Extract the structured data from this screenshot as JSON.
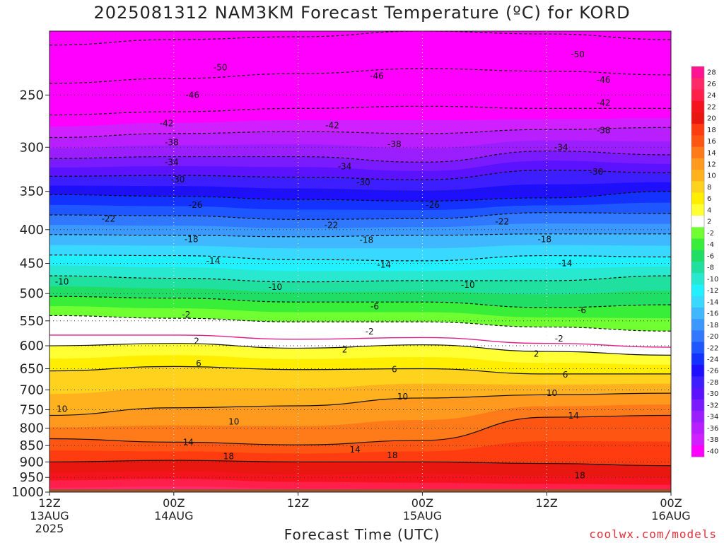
{
  "title": "2025081312 NAM3KM Forecast Temperature (ºC) for KORD",
  "x_axis_title": "Forecast Time (UTC)",
  "credit": "coolwx.com/models",
  "chart_data": {
    "type": "contour-time-height",
    "xlabel": "Forecast Time (UTC)",
    "ylabel": "",
    "y_scale": "log-pressure",
    "ylim": [
      1000,
      200
    ],
    "y_ticks": [
      250,
      300,
      350,
      400,
      450,
      500,
      550,
      600,
      650,
      700,
      750,
      800,
      850,
      900,
      950,
      1000
    ],
    "x_ticks": [
      {
        "hour": 0,
        "lines": [
          "12Z",
          "13AUG",
          "2025"
        ]
      },
      {
        "hour": 12,
        "lines": [
          "00Z",
          "14AUG"
        ]
      },
      {
        "hour": 24,
        "lines": [
          "12Z"
        ]
      },
      {
        "hour": 36,
        "lines": [
          "00Z",
          "15AUG"
        ]
      },
      {
        "hour": 48,
        "lines": [
          "12Z"
        ]
      },
      {
        "hour": 60,
        "lines": [
          "00Z",
          "16AUG"
        ]
      }
    ],
    "xlim": [
      0,
      60
    ],
    "colorbar_ticks": [
      28,
      26,
      24,
      22,
      20,
      18,
      16,
      14,
      12,
      10,
      8,
      6,
      4,
      2,
      -2,
      -4,
      -6,
      -8,
      -10,
      -12,
      -14,
      -16,
      -18,
      -20,
      -22,
      -24,
      -26,
      -28,
      -30,
      -32,
      -34,
      -36,
      -38,
      -40
    ],
    "colorbar_colors": [
      "#ff1493",
      "#ff2a6a",
      "#ff1f4a",
      "#f5141e",
      "#e8170f",
      "#ff3b10",
      "#ff5512",
      "#ff7a18",
      "#ff9a1e",
      "#ffb21e",
      "#ffd21e",
      "#ffee00",
      "#ffff33",
      "#ffffff",
      "#70ff30",
      "#38ee38",
      "#20dd66",
      "#20e0a0",
      "#28e8d0",
      "#20f0ff",
      "#38d8ff",
      "#40b8ff",
      "#3a98ff",
      "#2f78ff",
      "#1e56ff",
      "#1432ff",
      "#1e10ff",
      "#3c1eff",
      "#5a12ff",
      "#7a1aff",
      "#9a1eff",
      "#b81eff",
      "#d020ff",
      "#ff00ff"
    ],
    "isotherms": [
      {
        "value": -50,
        "p": [
          210,
          206,
          204,
          200,
          202,
          206
        ]
      },
      {
        "value": -46,
        "p": [
          240,
          236,
          232,
          228,
          230,
          233
        ]
      },
      {
        "value": -42,
        "p": [
          268,
          265,
          262,
          260,
          262,
          262
        ]
      },
      {
        "value": -38,
        "p": [
          290,
          286,
          284,
          286,
          282,
          280
        ]
      },
      {
        "value": -34,
        "p": [
          312,
          310,
          310,
          316,
          304,
          308
        ]
      },
      {
        "value": -30,
        "p": [
          332,
          331,
          333,
          336,
          325,
          328
        ]
      },
      {
        "value": -26,
        "p": [
          354,
          356,
          360,
          362,
          358,
          350
        ]
      },
      {
        "value": -22,
        "p": [
          380,
          381,
          386,
          385,
          377,
          378
        ]
      },
      {
        "value": -18,
        "p": [
          407,
          408,
          410,
          408,
          406,
          406
        ]
      },
      {
        "value": -14,
        "p": [
          437,
          438,
          444,
          446,
          438,
          440
        ]
      },
      {
        "value": -10,
        "p": [
          470,
          474,
          480,
          478,
          478,
          470
        ]
      },
      {
        "value": -6,
        "p": [
          505,
          508,
          515,
          515,
          525,
          520
        ]
      },
      {
        "value": -2,
        "p": [
          540,
          545,
          552,
          552,
          562,
          570
        ]
      },
      {
        "value": 2,
        "p": [
          600,
          595,
          605,
          598,
          612,
          620
        ]
      },
      {
        "value": 6,
        "p": [
          655,
          645,
          652,
          650,
          662,
          662
        ]
      },
      {
        "value": 10,
        "p": [
          765,
          745,
          740,
          720,
          712,
          708
        ]
      },
      {
        "value": 14,
        "p": [
          830,
          840,
          848,
          835,
          770,
          765
        ]
      },
      {
        "value": 18,
        "p": [
          900,
          895,
          900,
          900,
          905,
          912
        ]
      }
    ],
    "contour_labels": [
      {
        "text": "-50",
        "hour": 16.5,
        "p": 227
      },
      {
        "text": "-50",
        "hour": 51,
        "p": 217
      },
      {
        "text": "-46",
        "hour": 13.8,
        "p": 250
      },
      {
        "text": "-46",
        "hour": 31.6,
        "p": 234
      },
      {
        "text": "-46",
        "hour": 53.5,
        "p": 237
      },
      {
        "text": "-42",
        "hour": 11.3,
        "p": 276
      },
      {
        "text": "-42",
        "hour": 27.3,
        "p": 278
      },
      {
        "text": "-42",
        "hour": 53.5,
        "p": 257
      },
      {
        "text": "-38",
        "hour": 11.8,
        "p": 295
      },
      {
        "text": "-38",
        "hour": 33.3,
        "p": 297
      },
      {
        "text": "-38",
        "hour": 53.5,
        "p": 283
      },
      {
        "text": "-34",
        "hour": 11.8,
        "p": 316
      },
      {
        "text": "-34",
        "hour": 28.5,
        "p": 321
      },
      {
        "text": "-34",
        "hour": 49.4,
        "p": 300
      },
      {
        "text": "-30",
        "hour": 12.4,
        "p": 336
      },
      {
        "text": "-30",
        "hour": 30.3,
        "p": 339
      },
      {
        "text": "-30",
        "hour": 52.8,
        "p": 327
      },
      {
        "text": "-26",
        "hour": 14.1,
        "p": 367
      },
      {
        "text": "-26",
        "hour": 37,
        "p": 367
      },
      {
        "text": "-22",
        "hour": 5.7,
        "p": 385
      },
      {
        "text": "-22",
        "hour": 27.2,
        "p": 394
      },
      {
        "text": "-22",
        "hour": 43.7,
        "p": 389
      },
      {
        "text": "-18",
        "hour": 13.7,
        "p": 414
      },
      {
        "text": "-18",
        "hour": 30.6,
        "p": 415
      },
      {
        "text": "-18",
        "hour": 47.8,
        "p": 414
      },
      {
        "text": "-14",
        "hour": 15.8,
        "p": 446
      },
      {
        "text": "-14",
        "hour": 32.3,
        "p": 452
      },
      {
        "text": "-14",
        "hour": 49.8,
        "p": 450
      },
      {
        "text": "-10",
        "hour": 1.2,
        "p": 480
      },
      {
        "text": "-10",
        "hour": 21.8,
        "p": 489
      },
      {
        "text": "-10",
        "hour": 40.4,
        "p": 485
      },
      {
        "text": "-6",
        "hour": 31.4,
        "p": 523
      },
      {
        "text": "-6",
        "hour": 51.4,
        "p": 530
      },
      {
        "text": "-2",
        "hour": 13.2,
        "p": 538
      },
      {
        "text": "-2",
        "hour": 30.9,
        "p": 571
      },
      {
        "text": "-2",
        "hour": 49.2,
        "p": 585
      },
      {
        "text": "2",
        "hour": 14.2,
        "p": 590
      },
      {
        "text": "2",
        "hour": 28.5,
        "p": 608
      },
      {
        "text": "2",
        "hour": 47,
        "p": 617
      },
      {
        "text": "6",
        "hour": 14.4,
        "p": 638
      },
      {
        "text": "6",
        "hour": 33.3,
        "p": 652
      },
      {
        "text": "6",
        "hour": 49.8,
        "p": 664
      },
      {
        "text": "10",
        "hour": 1.2,
        "p": 748
      },
      {
        "text": "10",
        "hour": 17.8,
        "p": 782
      },
      {
        "text": "10",
        "hour": 34.1,
        "p": 717
      },
      {
        "text": "10",
        "hour": 48.5,
        "p": 708
      },
      {
        "text": "14",
        "hour": 13.4,
        "p": 840
      },
      {
        "text": "14",
        "hour": 29.5,
        "p": 862
      },
      {
        "text": "14",
        "hour": 50.6,
        "p": 766
      },
      {
        "text": "18",
        "hour": 17.3,
        "p": 883
      },
      {
        "text": "18",
        "hour": 33.1,
        "p": 880
      },
      {
        "text": "18",
        "hour": 51.2,
        "p": 944
      }
    ]
  }
}
